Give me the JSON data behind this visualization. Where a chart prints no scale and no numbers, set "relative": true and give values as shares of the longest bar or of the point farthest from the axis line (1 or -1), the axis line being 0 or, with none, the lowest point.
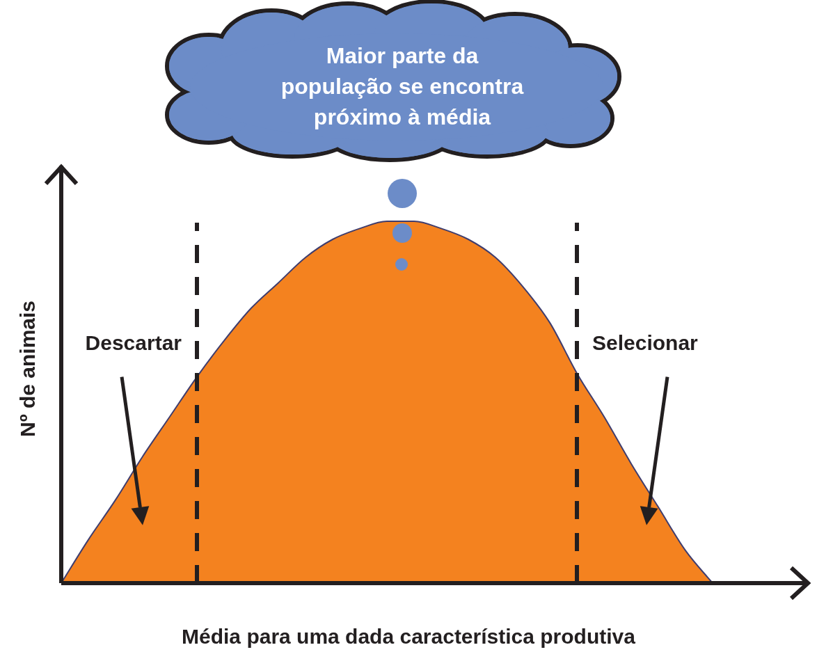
{
  "chart_data": {
    "type": "area",
    "relative": true,
    "xlabel": "Média para uma dada característica produtiva",
    "ylabel": "Nº de animais",
    "categories": [
      null,
      null,
      null,
      null,
      null,
      null,
      null,
      null,
      null,
      null,
      null,
      null,
      null,
      null,
      null,
      null,
      null,
      null,
      null,
      null,
      null,
      null,
      null,
      null,
      null,
      null,
      null,
      null
    ],
    "values": [
      0,
      0.12,
      0.23,
      0.35,
      0.46,
      0.57,
      0.67,
      0.76,
      0.83,
      0.9,
      0.95,
      0.98,
      1,
      1,
      0.98,
      0.95,
      0.9,
      0.82,
      0.72,
      0.58,
      0.46,
      0.33,
      0.21,
      0.09,
      0,
      null,
      null,
      null
    ],
    "color": "#f4821f",
    "annotations": [
      "Maior parte da\npopulação se encontra\npróximo à média",
      "Descartar",
      "Selecionar"
    ],
    "legend": false,
    "grid": false
  }
}
